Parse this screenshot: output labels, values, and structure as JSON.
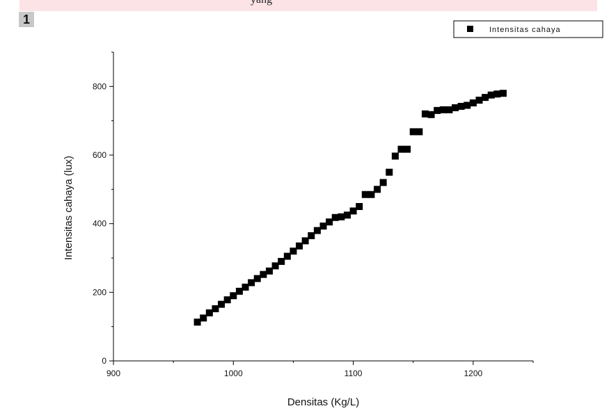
{
  "figure": {
    "header_text": "yang",
    "panel_label": "1"
  },
  "chart_data": {
    "type": "scatter",
    "title": "",
    "xlabel": "Densitas (Kg/L)",
    "ylabel": "Intensitas cahaya (lux)",
    "xlim": [
      900,
      1250
    ],
    "ylim": [
      0,
      900
    ],
    "xticks": [
      900,
      1000,
      1100,
      1200
    ],
    "yticks": [
      0,
      200,
      400,
      600,
      800
    ],
    "grid": false,
    "legend_position": "top-right",
    "marker_color": "#000000",
    "series": [
      {
        "name": "Intensitas cahaya",
        "x": [
          970,
          975,
          980,
          985,
          990,
          995,
          1000,
          1005,
          1010,
          1015,
          1020,
          1025,
          1030,
          1035,
          1040,
          1045,
          1050,
          1055,
          1060,
          1065,
          1070,
          1075,
          1080,
          1085,
          1090,
          1095,
          1100,
          1105,
          1110,
          1115,
          1120,
          1125,
          1130,
          1135,
          1140,
          1145,
          1150,
          1155,
          1160,
          1165,
          1170,
          1175,
          1180,
          1185,
          1190,
          1195,
          1200,
          1205,
          1210,
          1215,
          1220,
          1225
        ],
        "y": [
          113,
          125,
          140,
          152,
          165,
          178,
          190,
          203,
          215,
          228,
          240,
          252,
          262,
          277,
          290,
          305,
          320,
          335,
          350,
          365,
          380,
          393,
          405,
          418,
          420,
          425,
          437,
          450,
          485,
          485,
          500,
          520,
          550,
          597,
          617,
          617,
          668,
          668,
          720,
          718,
          730,
          732,
          732,
          738,
          742,
          745,
          752,
          760,
          768,
          775,
          778,
          780
        ]
      }
    ]
  }
}
